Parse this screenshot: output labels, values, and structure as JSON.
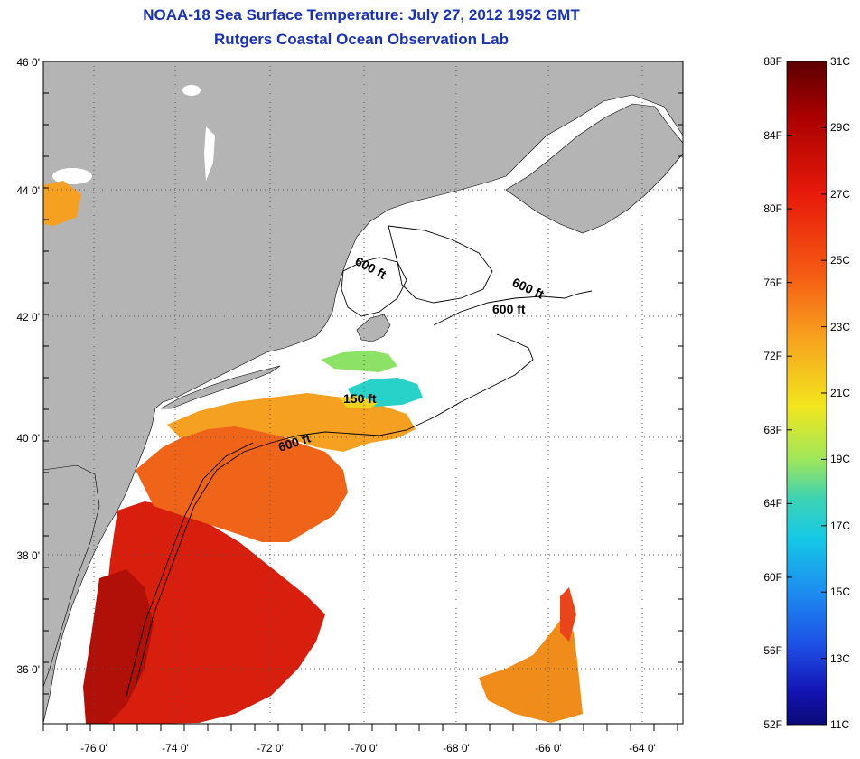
{
  "title": "NOAA-18 Sea Surface Temperature:  July 27, 2012 1952 GMT",
  "subtitle": "Rutgers Coastal Ocean Observation Lab",
  "map": {
    "lat_labels": [
      "46 0'",
      "44 0'",
      "42 0'",
      "40 0'",
      "38 0'",
      "36 0'"
    ],
    "lon_labels": [
      "-76 0'",
      "-74 0'",
      "-72 0'",
      "-70 0'",
      "-68 0'",
      "-66 0'",
      "-64 0'"
    ],
    "contour_labels": [
      "600 ft",
      "600 ft",
      "600 ft",
      "150 ft",
      "600 ft"
    ],
    "colors": {
      "land": "#b4b4b4",
      "ocean_no_data": "#ffffff",
      "grid": "#555555"
    }
  },
  "colorbar": {
    "fahrenheit_labels": [
      "88F",
      "84F",
      "80F",
      "76F",
      "72F",
      "68F",
      "64F",
      "60F",
      "56F",
      "52F"
    ],
    "celsius_labels": [
      "31C",
      "29C",
      "27C",
      "25C",
      "23C",
      "21C",
      "19C",
      "17C",
      "15C",
      "13C",
      "11C"
    ],
    "gradient_colors": [
      "#5c0000",
      "#a80000",
      "#e81a0a",
      "#f55a14",
      "#f7a41e",
      "#f2e61e",
      "#9ee65a",
      "#3cd2b4",
      "#14c8e6",
      "#1e8cf0",
      "#1e50e6",
      "#1414b4",
      "#0a0a78"
    ]
  }
}
